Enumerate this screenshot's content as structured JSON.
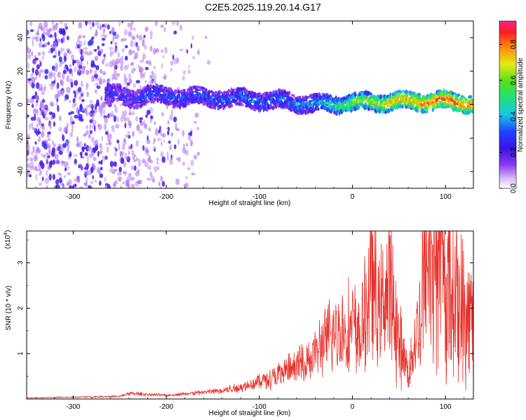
{
  "title": "C2E5.2025.119.20.14.G17",
  "colors": {
    "spec_low": "#c9a6f2",
    "spec_mid": "#4b12e8",
    "spec_high": "#ff2a2a",
    "snr_line": "#e8302a"
  },
  "chart_data": [
    {
      "type": "heatmap",
      "name": "spectrogram",
      "xlabel": "Height of straight line (km)",
      "ylabel": "Frequency (Hz)",
      "xlim": [
        -350,
        130
      ],
      "ylim": [
        -50,
        50
      ],
      "xticks": [
        -300,
        -200,
        -100,
        0,
        100
      ],
      "yticks": [
        -40,
        -20,
        0,
        20,
        40
      ],
      "colorbar": {
        "label": "Normalized spectral amplitude",
        "range": [
          0,
          0.93
        ],
        "ticks": [
          "0.0",
          "0.2",
          "0.4",
          "0.6",
          "0.8"
        ]
      },
      "ridge": {
        "x": [
          -260,
          -240,
          -220,
          -200,
          -150,
          -100,
          -80,
          -50,
          -30,
          0,
          50,
          100,
          130
        ],
        "center_hz": [
          6,
          4,
          6,
          5,
          4,
          3,
          2,
          1,
          0,
          1,
          2,
          2,
          1
        ],
        "amplitude": [
          0.25,
          0.22,
          0.3,
          0.3,
          0.32,
          0.35,
          0.33,
          0.4,
          0.45,
          0.65,
          0.8,
          0.9,
          0.85
        ]
      }
    },
    {
      "type": "line",
      "name": "snr",
      "xlabel": "Height of straight line (km)",
      "ylabel": "SNR (10 * v/v)",
      "scale_label": "(x10",
      "scale_exp": "4",
      "xlim": [
        -350,
        130
      ],
      "ylim": [
        0,
        3.7
      ],
      "xticks": [
        -300,
        -200,
        -100,
        0,
        100
      ],
      "yticks": [
        1,
        2,
        3
      ],
      "series": [
        {
          "x": [
            -350,
            -300,
            -250,
            -240,
            -200,
            -150,
            -120,
            -100,
            -80,
            -60,
            -40,
            -20,
            0,
            10,
            20,
            30,
            40,
            50,
            60,
            70,
            80,
            90,
            100,
            110,
            120,
            130
          ],
          "y": [
            0.03,
            0.05,
            0.07,
            0.15,
            0.1,
            0.2,
            0.3,
            0.45,
            0.6,
            0.8,
            1.1,
            1.6,
            1.7,
            1.5,
            2.8,
            2.0,
            2.6,
            1.3,
            0.6,
            1.5,
            3.3,
            3.5,
            2.4,
            2.5,
            1.8,
            1.6
          ]
        }
      ]
    }
  ]
}
